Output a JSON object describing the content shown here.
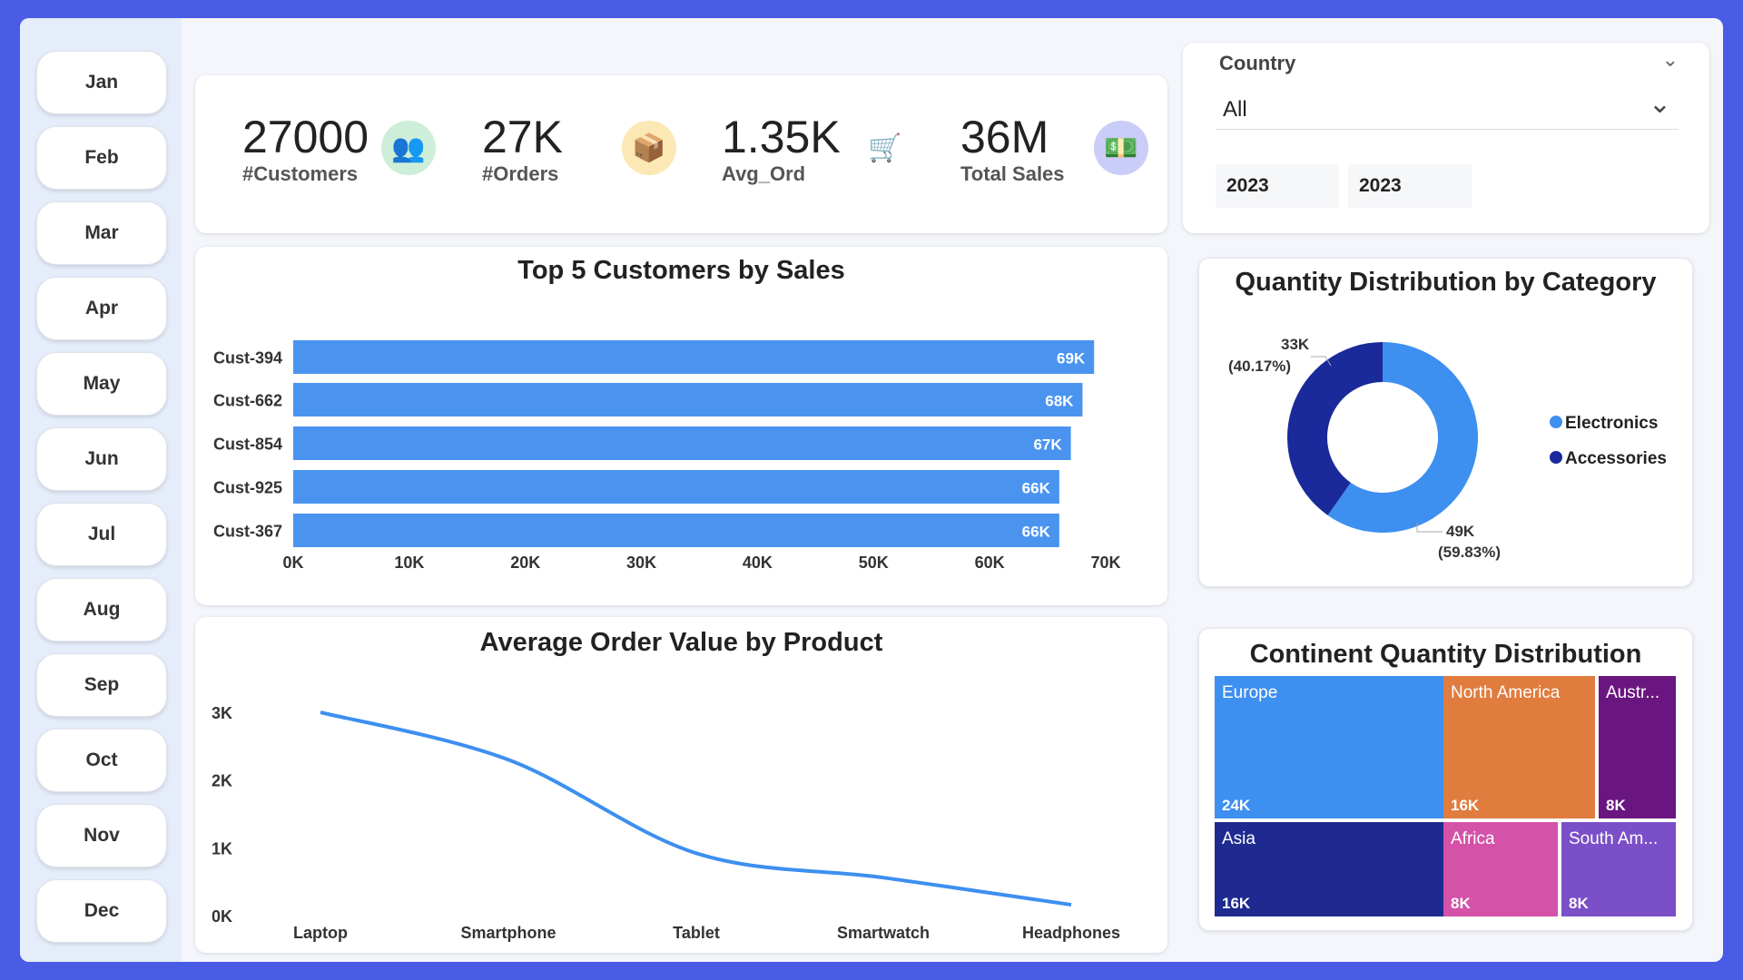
{
  "months": [
    "Jan",
    "Feb",
    "Mar",
    "Apr",
    "May",
    "Jun",
    "Jul",
    "Aug",
    "Sep",
    "Oct",
    "Nov",
    "Dec"
  ],
  "kpis": [
    {
      "value": "27000",
      "label": "#Customers",
      "icon": "people-icon",
      "color": "#cdeed8"
    },
    {
      "value": "27K",
      "label": "#Orders",
      "icon": "box-icon",
      "color": "#fbe8b4"
    },
    {
      "value": "1.35K",
      "label": "Avg_Ord",
      "icon": "cart-icon",
      "color": "#ffffff"
    },
    {
      "value": "36M",
      "label": "Total Sales",
      "icon": "money-icon",
      "color": "#c9cdf7"
    }
  ],
  "filter": {
    "label": "Country",
    "selected": "All",
    "year_from": "2023",
    "year_to": "2023"
  },
  "chart_data": [
    {
      "type": "bar",
      "title": "Top 5 Customers by Sales",
      "categories": [
        "Cust-394",
        "Cust-662",
        "Cust-854",
        "Cust-925",
        "Cust-367"
      ],
      "values": [
        69,
        68,
        67,
        66,
        66
      ],
      "data_labels": [
        "69K",
        "68K",
        "67K",
        "66K",
        "66K"
      ],
      "xticks": [
        "0K",
        "10K",
        "20K",
        "30K",
        "40K",
        "50K",
        "60K",
        "70K"
      ],
      "xlim": [
        0,
        70
      ],
      "unit": "K",
      "color": "#4a94f0",
      "orientation": "horizontal"
    },
    {
      "type": "line",
      "title": "Average Order Value by Product",
      "categories": [
        "Laptop",
        "Smartphone",
        "Tablet",
        "Smartwatch",
        "Headphones"
      ],
      "values": [
        3.0,
        2.3,
        0.92,
        0.56,
        0.16
      ],
      "yticks": [
        "0K",
        "1K",
        "2K",
        "3K"
      ],
      "ylim": [
        0,
        3
      ],
      "unit": "K",
      "color": "#3d8ff0"
    },
    {
      "type": "pie",
      "title": "Quantity Distribution by Category",
      "legend_position": "right",
      "slices": [
        {
          "name": "Electronics",
          "value": 49,
          "label": "49K",
          "pct": "(59.83%)",
          "color": "#3d8ff0"
        },
        {
          "name": "Accessories",
          "value": 33,
          "label": "33K",
          "pct": "(40.17%)",
          "color": "#1a2a9a"
        }
      ]
    },
    {
      "type": "treemap",
      "title": "Continent Quantity Distribution",
      "items": [
        {
          "name": "Europe",
          "label": "24K",
          "value": 24,
          "color": "#3d8ff0"
        },
        {
          "name": "North America",
          "label": "16K",
          "value": 16,
          "color": "#e07c3e"
        },
        {
          "name": "Austr...",
          "label": "8K",
          "value": 8,
          "color": "#6a1680"
        },
        {
          "name": "Asia",
          "label": "16K",
          "value": 16,
          "color": "#1e2a8f"
        },
        {
          "name": "Africa",
          "label": "8K",
          "value": 8,
          "color": "#d452a8"
        },
        {
          "name": "South Am...",
          "label": "8K",
          "value": 8,
          "color": "#7b4fc7"
        }
      ]
    }
  ]
}
